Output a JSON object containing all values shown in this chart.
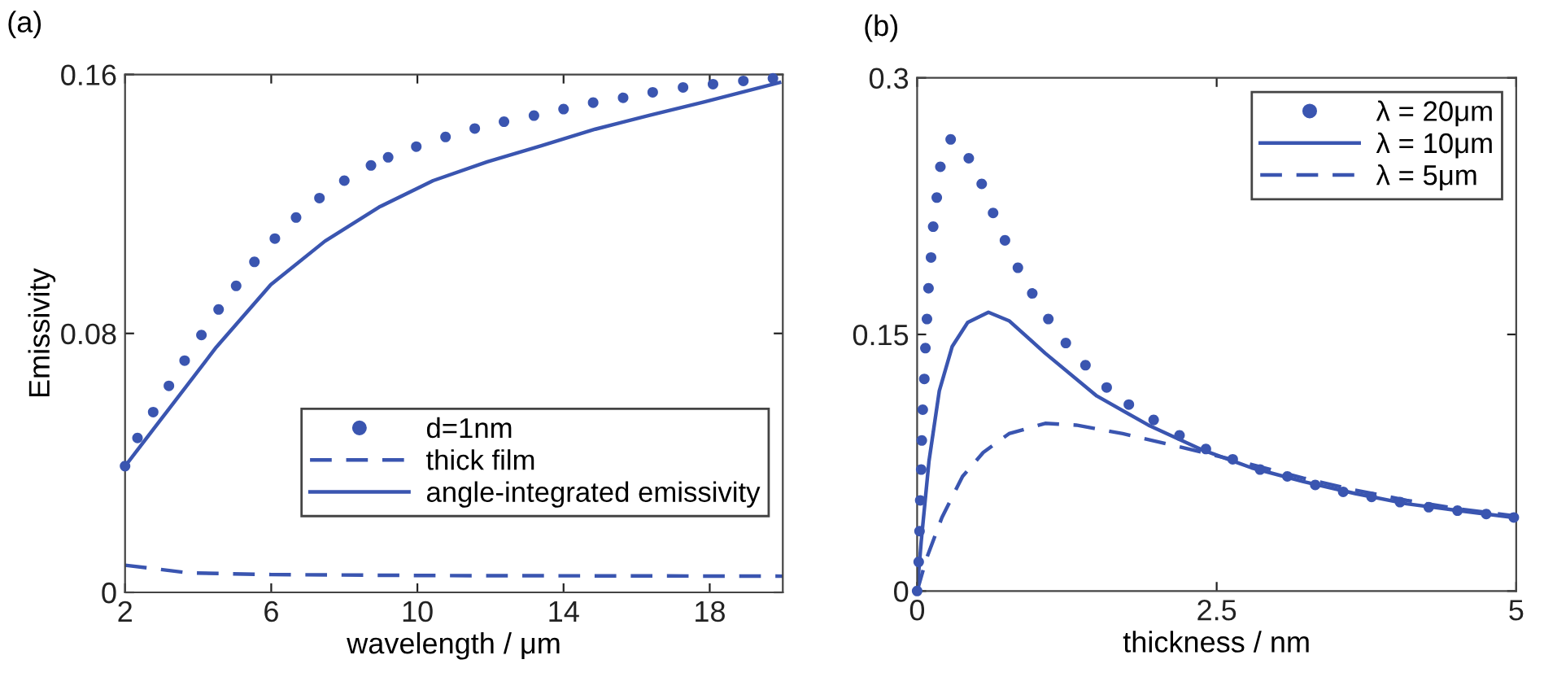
{
  "chart_data": [
    {
      "type": "line",
      "title": "(a)",
      "xlabel": "wavelength / μm",
      "ylabel": "Emissivity",
      "xlim": [
        2,
        20
      ],
      "ylim": [
        0,
        0.16
      ],
      "xticks": [
        2,
        6,
        10,
        14,
        18
      ],
      "yticks": [
        0,
        0.08,
        0.16
      ],
      "grid": false,
      "legend": "lower right",
      "series": [
        {
          "name": "d=1nm",
          "type": "scatter",
          "marker": "circle",
          "color": "#3a55b0",
          "x": [
            2,
            2.34,
            2.77,
            3.2,
            3.63,
            4.09,
            4.56,
            5.04,
            5.54,
            6.1,
            6.68,
            7.32,
            8.0,
            8.73,
            9.2,
            9.97,
            10.77,
            11.57,
            12.37,
            13.19,
            14.0,
            14.81,
            15.63,
            16.44,
            17.27,
            18.09,
            18.92,
            19.73
          ],
          "values": [
            0.039,
            0.0477,
            0.0557,
            0.0638,
            0.0716,
            0.0795,
            0.0874,
            0.0947,
            0.1021,
            0.1093,
            0.1158,
            0.1218,
            0.1272,
            0.1319,
            0.1344,
            0.1377,
            0.1407,
            0.1433,
            0.1454,
            0.1473,
            0.1493,
            0.1513,
            0.1528,
            0.1545,
            0.156,
            0.157,
            0.158,
            0.1588
          ]
        },
        {
          "name": "thick film",
          "line_style": "dashed",
          "color": "#3a55b0",
          "x": [
            2,
            3.76,
            6,
            10.4,
            20
          ],
          "values": [
            0.0084,
            0.006,
            0.0055,
            0.0052,
            0.005
          ]
        },
        {
          "name": "angle-integrated emissivity",
          "line_style": "solid",
          "color": "#3a55b0",
          "x": [
            2,
            3.02,
            4.5,
            5.99,
            7.47,
            8.95,
            10.43,
            11.91,
            13.39,
            14.87,
            16.36,
            17.84,
            19.91
          ],
          "values": [
            0.039,
            0.054,
            0.0758,
            0.0951,
            0.1085,
            0.119,
            0.1272,
            0.133,
            0.138,
            0.1431,
            0.1474,
            0.1515,
            0.1575
          ]
        }
      ]
    },
    {
      "type": "line",
      "title": "(b)",
      "xlabel": "thickness / nm",
      "xlim": [
        0,
        5
      ],
      "ylim": [
        0,
        0.3
      ],
      "xticks": [
        0,
        2.5,
        5
      ],
      "yticks": [
        0,
        0.15,
        0.3
      ],
      "grid": false,
      "legend": "top right",
      "series": [
        {
          "name": "λ = 20μm",
          "type": "scatter",
          "marker": "circle",
          "color": "#3a55b0",
          "x": [
            0,
            0.013,
            0.02,
            0.026,
            0.034,
            0.039,
            0.047,
            0.06,
            0.069,
            0.082,
            0.095,
            0.116,
            0.134,
            0.164,
            0.194,
            0.28,
            0.431,
            0.539,
            0.634,
            0.733,
            0.841,
            0.961,
            1.095,
            1.241,
            1.405,
            1.582,
            1.767,
            1.974,
            2.19,
            2.41,
            2.634,
            2.862,
            3.09,
            3.323,
            3.556,
            3.793,
            4.03,
            4.27,
            4.51,
            4.75,
            4.98
          ],
          "values": [
            0,
            0.017,
            0.035,
            0.053,
            0.071,
            0.088,
            0.106,
            0.124,
            0.142,
            0.159,
            0.177,
            0.195,
            0.213,
            0.23,
            0.248,
            0.264,
            0.253,
            0.238,
            0.221,
            0.205,
            0.189,
            0.174,
            0.159,
            0.145,
            0.132,
            0.119,
            0.109,
            0.1,
            0.091,
            0.083,
            0.077,
            0.071,
            0.067,
            0.062,
            0.058,
            0.055,
            0.052,
            0.049,
            0.047,
            0.045,
            0.043
          ]
        },
        {
          "name": "λ = 10μm",
          "line_style": "solid",
          "color": "#3a55b0",
          "x": [
            0,
            0.034,
            0.099,
            0.185,
            0.293,
            0.422,
            0.595,
            0.767,
            1.069,
            1.5,
            1.93,
            2.362,
            2.793,
            3.224,
            3.655,
            4.086,
            4.517,
            4.98
          ],
          "values": [
            0,
            0.029,
            0.076,
            0.117,
            0.143,
            0.157,
            0.163,
            0.158,
            0.139,
            0.114,
            0.097,
            0.083,
            0.072,
            0.064,
            0.057,
            0.051,
            0.047,
            0.043
          ]
        },
        {
          "name": "λ = 5μm",
          "line_style": "dashed",
          "color": "#3a55b0",
          "x": [
            0,
            0.078,
            0.207,
            0.379,
            0.552,
            0.767,
            1.069,
            1.328,
            1.716,
            2.147,
            2.621,
            3.224,
            3.655,
            4.086,
            4.517,
            4.98
          ],
          "values": [
            0,
            0.019,
            0.043,
            0.067,
            0.081,
            0.092,
            0.098,
            0.097,
            0.092,
            0.085,
            0.077,
            0.066,
            0.059,
            0.053,
            0.048,
            0.044
          ]
        }
      ]
    }
  ]
}
